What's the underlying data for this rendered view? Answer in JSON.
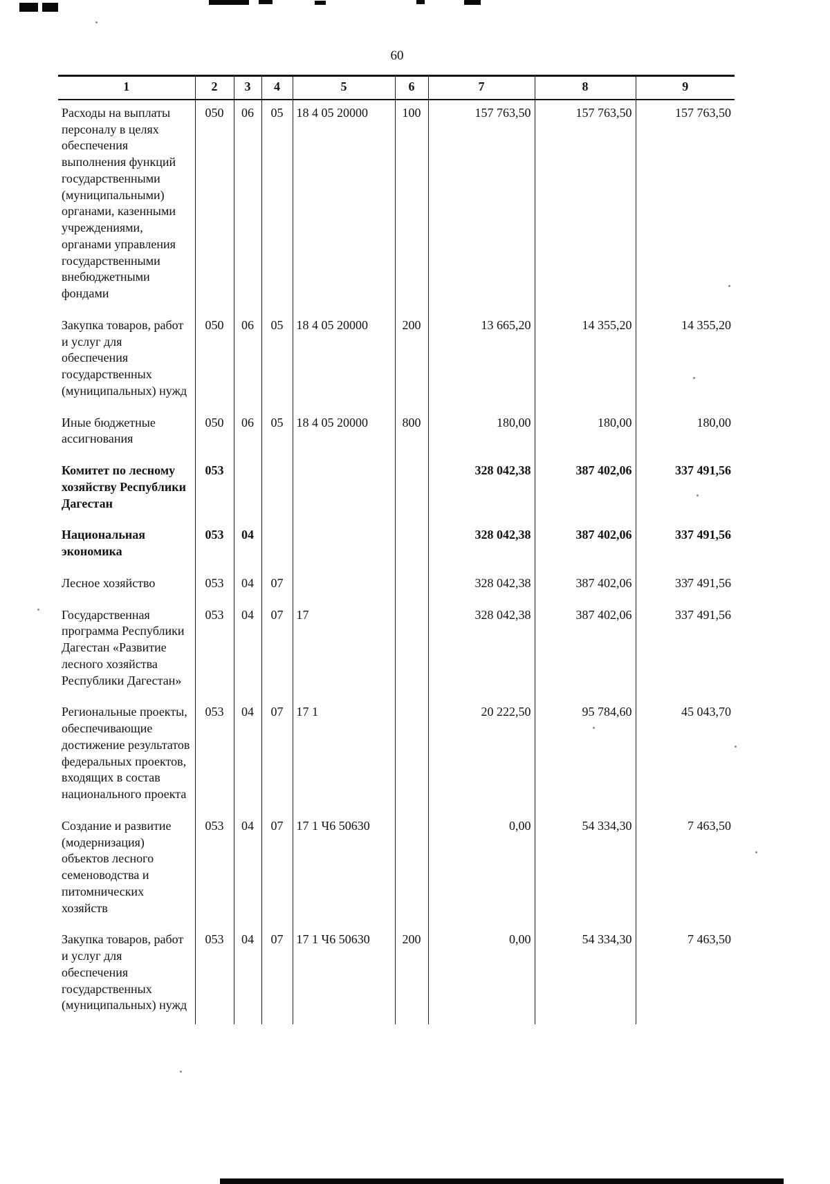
{
  "page": {
    "number": "60"
  },
  "table": {
    "headers": [
      "1",
      "2",
      "3",
      "4",
      "5",
      "6",
      "7",
      "8",
      "9"
    ],
    "rows": [
      {
        "bold": false,
        "cells": [
          "Расходы на выплаты персоналу в целях обеспечения выполнения функций государственными (муниципальными) органами, казенными учреждениями, органами управления государственными внебюджетными фондами",
          "050",
          "06",
          "05",
          "18 4 05 20000",
          "100",
          "157 763,50",
          "157 763,50",
          "157 763,50"
        ]
      },
      {
        "bold": false,
        "cells": [
          "Закупка товаров, работ и услуг для обеспечения государственных (муниципальных) нужд",
          "050",
          "06",
          "05",
          "18 4 05 20000",
          "200",
          "13 665,20",
          "14 355,20",
          "14 355,20"
        ]
      },
      {
        "bold": false,
        "cells": [
          "Иные бюджетные ассигнования",
          "050",
          "06",
          "05",
          "18 4 05 20000",
          "800",
          "180,00",
          "180,00",
          "180,00"
        ]
      },
      {
        "bold": true,
        "cells": [
          "Комитет по лесному хозяйству Республики Дагестан",
          "053",
          "",
          "",
          "",
          "",
          "328 042,38",
          "387 402,06",
          "337 491,56"
        ]
      },
      {
        "bold": true,
        "cells": [
          "Национальная экономика",
          "053",
          "04",
          "",
          "",
          "",
          "328 042,38",
          "387 402,06",
          "337 491,56"
        ]
      },
      {
        "bold": false,
        "cells": [
          "Лесное хозяйство",
          "053",
          "04",
          "07",
          "",
          "",
          "328 042,38",
          "387 402,06",
          "337 491,56"
        ]
      },
      {
        "bold": false,
        "cells": [
          "Государственная программа Республики Дагестан «Развитие лесного хозяйства Республики Дагестан»",
          "053",
          "04",
          "07",
          "17",
          "",
          "328 042,38",
          "387 402,06",
          "337 491,56"
        ]
      },
      {
        "bold": false,
        "cells": [
          "Региональные проекты, обеспечивающие достижение результатов федеральных проектов, входящих в состав национального проекта",
          "053",
          "04",
          "07",
          "17 1",
          "",
          "20 222,50",
          "95 784,60",
          "45 043,70"
        ]
      },
      {
        "bold": false,
        "cells": [
          "Создание и развитие (модернизация) объектов лесного семеноводства и питомнических хозяйств",
          "053",
          "04",
          "07",
          "17 1 Ч6 50630",
          "",
          "0,00",
          "54 334,30",
          "7 463,50"
        ]
      },
      {
        "bold": false,
        "cells": [
          "Закупка товаров, работ и услуг для обеспечения государственных (муниципальных) нужд",
          "053",
          "04",
          "07",
          "17 1 Ч6 50630",
          "200",
          "0,00",
          "54 334,30",
          "7 463,50"
        ]
      }
    ]
  }
}
